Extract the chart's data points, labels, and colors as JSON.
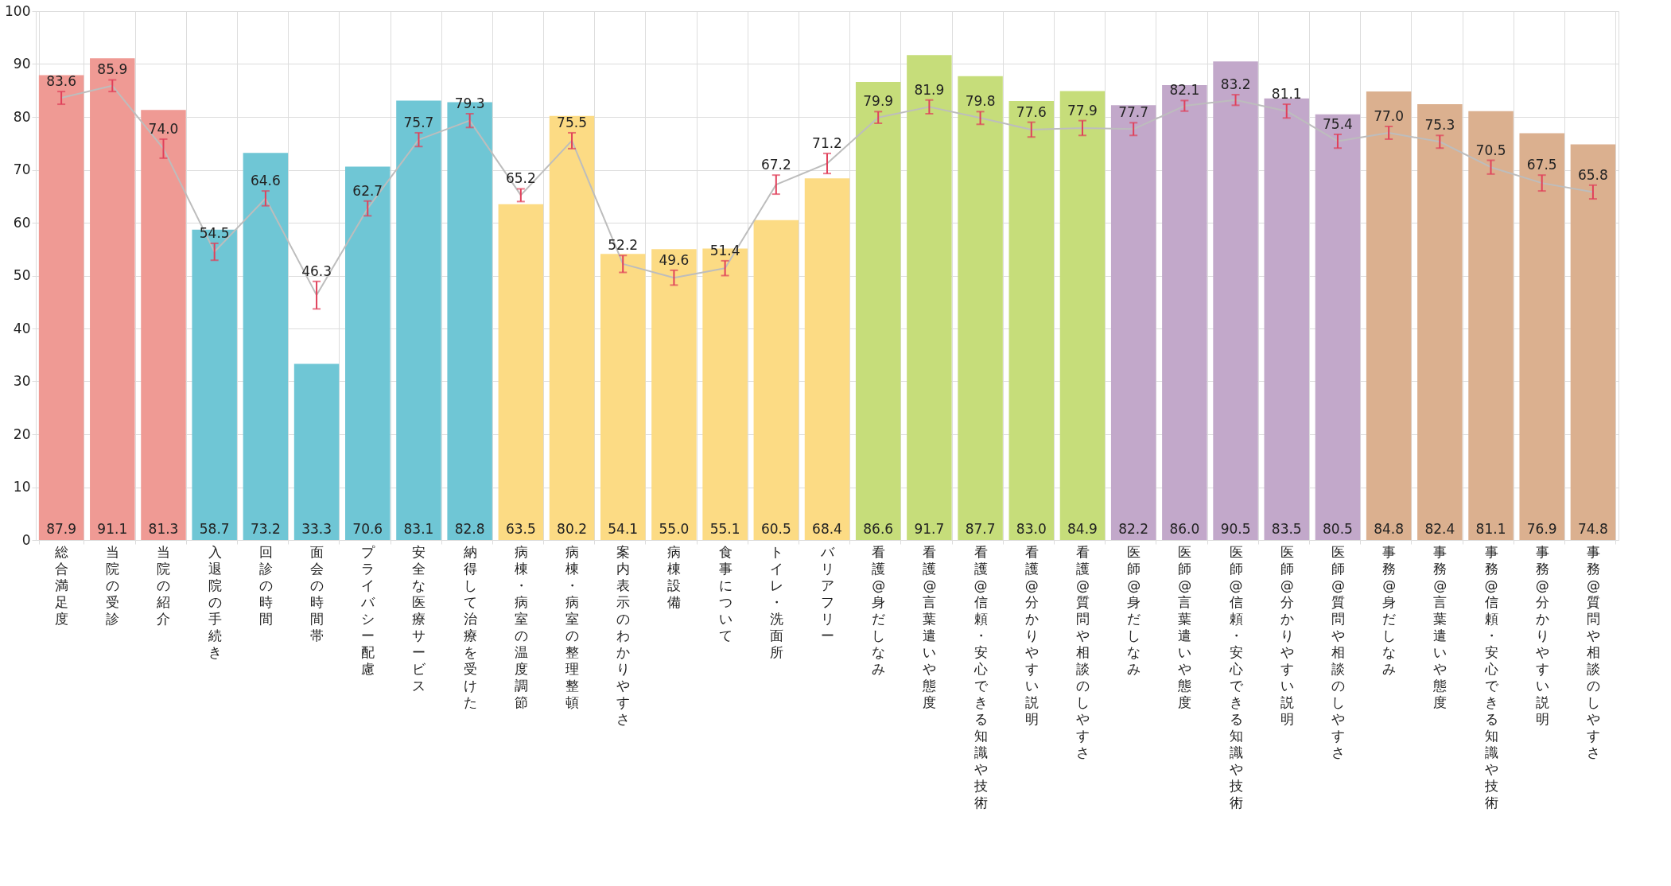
{
  "chart_data": {
    "type": "bar",
    "categories": [
      "総合満足度",
      "当院の受診",
      "当院の紹介",
      "入退院の手続き",
      "回診の時間",
      "面会の時間帯",
      "プライバシー配慮",
      "安全な医療サービス",
      "納得して治療を受けた",
      "病棟・病室の温度調節",
      "病棟・病室の整理整頓",
      "案内表示のわかりやすさ",
      "病棟設備",
      "食事について",
      "トイレ・洗面所",
      "バリアフリー",
      "看護@身だしなみ",
      "看護@言葉遣いや態度",
      "看護@信頼・安心できる知識や技術",
      "看護@分かりやすい説明",
      "看護@質問や相談のしやすさ",
      "医師@身だしなみ",
      "医師@言葉遣いや態度",
      "医師@信頼・安心できる知識や技術",
      "医師@分かりやすい説明",
      "医師@質問や相談のしやすさ",
      "事務@身だしなみ",
      "事務@言葉遣いや態度",
      "事務@信頼・安心できる知識や技術",
      "事務@分かりやすい説明",
      "事務@質問や相談のしやすさ"
    ],
    "series": [
      {
        "values": [
          87.9,
          91.1,
          81.3,
          58.7,
          73.2,
          33.3,
          70.6,
          83.1,
          82.8,
          63.5,
          80.2,
          54.1,
          55.0,
          55.1,
          60.5,
          68.4,
          86.6,
          91.7,
          87.7,
          83.0,
          84.9,
          82.2,
          86.0,
          90.5,
          83.5,
          80.5,
          84.8,
          82.4,
          81.1,
          76.9,
          74.8
        ],
        "value_labels": [
          "87.9",
          "91.1",
          "81.3",
          "58.7",
          "73.2",
          "33.3",
          "70.6",
          "83.1",
          "82.8",
          "63.5",
          "80.2",
          "54.1",
          "55.0",
          "55.1",
          "60.5",
          "68.4",
          "86.6",
          "91.7",
          "87.7",
          "83.0",
          "84.9",
          "82.2",
          "86.0",
          "90.5",
          "83.5",
          "80.5",
          "84.8",
          "82.4",
          "81.1",
          "76.9",
          "74.8"
        ],
        "colors": [
          "#ef9a94",
          "#ef9a94",
          "#ef9a94",
          "#6fc6d5",
          "#6fc6d5",
          "#6fc6d5",
          "#6fc6d5",
          "#6fc6d5",
          "#6fc6d5",
          "#fcdb84",
          "#fcdb84",
          "#fcdb84",
          "#fcdb84",
          "#fcdb84",
          "#fcdb84",
          "#fcdb84",
          "#c6dd7a",
          "#c6dd7a",
          "#c6dd7a",
          "#c6dd7a",
          "#c6dd7a",
          "#c2a8ca",
          "#c2a8ca",
          "#c2a8ca",
          "#c2a8ca",
          "#c2a8ca",
          "#dbb08f",
          "#dbb08f",
          "#dbb08f",
          "#dbb08f",
          "#dbb08f"
        ]
      },
      {
        "type": "line",
        "color": "#bdbdbd",
        "value_labels": [
          "83.6",
          "85.9",
          "74.0",
          "54.5",
          "64.6",
          "46.3",
          "62.7",
          "75.7",
          "79.3",
          "65.2",
          "75.5",
          "52.2",
          "49.6",
          "51.4",
          "67.2",
          "71.2",
          "79.9",
          "81.9",
          "79.8",
          "77.6",
          "77.9",
          "77.7",
          "82.1",
          "83.2",
          "81.1",
          "75.4",
          "77.0",
          "75.3",
          "70.5",
          "67.5",
          "65.8"
        ],
        "values": [
          83.6,
          85.9,
          74.0,
          54.5,
          64.6,
          46.3,
          62.7,
          75.7,
          79.3,
          65.2,
          75.5,
          52.2,
          49.6,
          51.4,
          67.2,
          71.2,
          79.9,
          81.9,
          79.8,
          77.6,
          77.9,
          77.7,
          82.1,
          83.2,
          81.1,
          75.4,
          77.0,
          75.3,
          70.5,
          67.5,
          65.8
        ],
        "errors": [
          1.2,
          1.1,
          1.8,
          1.6,
          1.4,
          2.6,
          1.4,
          1.3,
          1.3,
          1.2,
          1.5,
          1.6,
          1.4,
          1.4,
          1.8,
          1.9,
          1.1,
          1.3,
          1.2,
          1.4,
          1.4,
          1.2,
          1.0,
          1.0,
          1.3,
          1.3,
          1.2,
          1.2,
          1.3,
          1.5,
          1.3
        ]
      }
    ],
    "ylim": [
      0,
      100
    ],
    "yticks": [
      0,
      10,
      20,
      30,
      40,
      50,
      60,
      70,
      80,
      90,
      100
    ],
    "grid": true
  }
}
